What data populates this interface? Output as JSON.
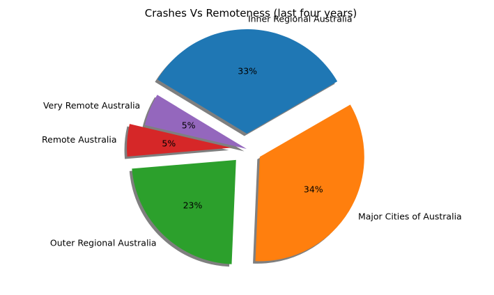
{
  "chart_data": {
    "type": "pie",
    "title": "Crashes Vs Remoteness (last four years)",
    "slices": [
      {
        "label": "Major Cities of Australia",
        "percent_label": "34%",
        "value": 34,
        "color": "#ff7f0e",
        "exploded": true
      },
      {
        "label": "Outer Regional Australia",
        "percent_label": "23%",
        "value": 23,
        "color": "#2ca02c",
        "exploded": true
      },
      {
        "label": "Remote Australia",
        "percent_label": "5%",
        "value": 5,
        "color": "#d62728",
        "exploded": true
      },
      {
        "label": "Very Remote Australia",
        "percent_label": "5%",
        "value": 5,
        "color": "#9467bd",
        "exploded": false
      },
      {
        "label": "Inner Regional Australia",
        "percent_label": "33%",
        "value": 33,
        "color": "#1f77b4",
        "exploded": true
      }
    ],
    "shadow": true,
    "legend": "none"
  }
}
